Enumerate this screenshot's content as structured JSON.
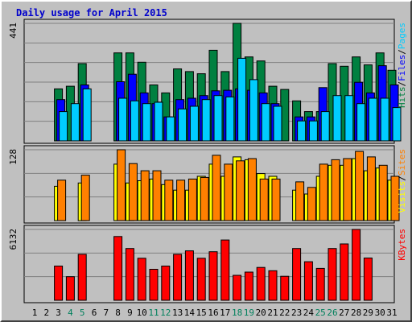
{
  "chart_data": {
    "type": "bar",
    "title": "Daily usage for April 2015",
    "categories": [
      "1",
      "2",
      "3",
      "4",
      "5",
      "6",
      "7",
      "8",
      "9",
      "10",
      "11",
      "12",
      "13",
      "14",
      "15",
      "16",
      "17",
      "18",
      "19",
      "20",
      "21",
      "22",
      "23",
      "24",
      "25",
      "26",
      "27",
      "28",
      "29",
      "30",
      "31"
    ],
    "weekend_days": [
      "4",
      "5",
      "11",
      "12",
      "18",
      "19",
      "25",
      "26"
    ],
    "panels": [
      {
        "id": "hits-files-pages",
        "ymax_label": "441",
        "ymax": 441,
        "legend": [
          {
            "name": "Pages",
            "color": "#00ccff"
          },
          {
            "name": "/",
            "color": "#000000"
          },
          {
            "name": "Files",
            "color": "#0000ff"
          },
          {
            "name": "/",
            "color": "#000000"
          },
          {
            "name": "Hits",
            "color": "#008040"
          }
        ],
        "series": [
          {
            "name": "Hits",
            "color": "#008040",
            "values": [
              0,
              0,
              195,
              205,
              290,
              0,
              0,
              330,
              330,
              295,
              210,
              180,
              270,
              260,
              252,
              340,
              260,
              441,
              315,
              300,
              205,
              193,
              150,
              110,
              110,
              290,
              280,
              315,
              285,
              330,
              265
            ]
          },
          {
            "name": "Files",
            "color": "#0000ff",
            "values": [
              0,
              0,
              155,
              0,
              210,
              0,
              0,
              222,
              250,
              180,
              140,
              90,
              155,
              160,
              170,
              188,
              190,
              195,
              190,
              180,
              140,
              0,
              90,
              90,
              200,
              0,
              0,
              220,
              180,
              282,
              210
            ]
          },
          {
            "name": "Pages",
            "color": "#00ccff",
            "values": [
              0,
              0,
              110,
              140,
              195,
              0,
              0,
              160,
              150,
              140,
              145,
              90,
              120,
              130,
              155,
              170,
              165,
              310,
              230,
              140,
              130,
              0,
              75,
              75,
              110,
              170,
              170,
              140,
              160,
              160,
              125
            ]
          }
        ]
      },
      {
        "id": "visits-sites",
        "ymax_label": "128",
        "ymax": 128,
        "legend": [
          {
            "name": "Sites",
            "color": "#ff8000"
          },
          {
            "name": "/",
            "color": "#000000"
          },
          {
            "name": "Visits",
            "color": "#ffff00"
          }
        ],
        "series": [
          {
            "name": "Visits",
            "color": "#ffff00",
            "values": [
              0,
              0,
              62,
              0,
              68,
              0,
              0,
              102,
              68,
              72,
              75,
              65,
              55,
              55,
              80,
              102,
              80,
              115,
              110,
              85,
              80,
              0,
              55,
              48,
              80,
              100,
              100,
              112,
              90,
              95,
              73
            ]
          },
          {
            "name": "Sites",
            "color": "#ff8000",
            "values": [
              0,
              0,
              73,
              0,
              82,
              0,
              0,
              128,
              103,
              90,
              90,
              73,
              73,
              75,
              78,
              118,
              102,
              108,
              112,
              75,
              75,
              0,
              70,
              60,
              102,
              110,
              112,
              125,
              115,
              100,
              80
            ]
          }
        ]
      },
      {
        "id": "kbytes",
        "ymax_label": "6132",
        "ymax": 6132,
        "legend": [
          {
            "name": "KBytes",
            "color": "#ff0000"
          }
        ],
        "series": [
          {
            "name": "KBytes",
            "color": "#ff0000",
            "values": [
              0,
              0,
              2960,
              2040,
              3980,
              0,
              0,
              5520,
              4480,
              3640,
              2680,
              2960,
              3980,
              4280,
              3640,
              4200,
              5220,
              2160,
              2440,
              2840,
              2560,
              2080,
              4480,
              3340,
              2760,
              4480,
              4880,
              6132,
              3660,
              0,
              0
            ]
          }
        ]
      }
    ],
    "xlabel": "",
    "ylabel": "",
    "grid": true
  }
}
